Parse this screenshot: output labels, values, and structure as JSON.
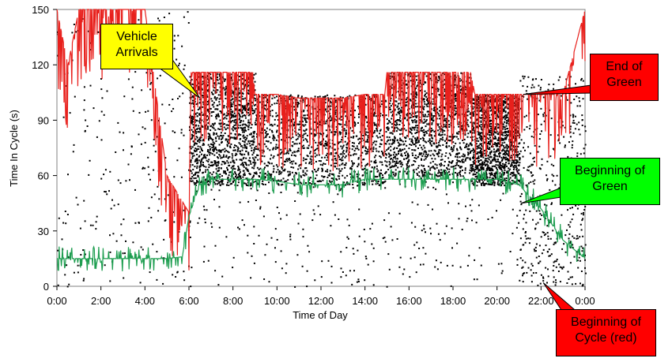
{
  "chart_data": {
    "type": "scatter",
    "title": "",
    "xlabel": "Time of Day",
    "ylabel": "Time In Cycle (s)",
    "xlim": [
      0,
      24
    ],
    "ylim": [
      0,
      150
    ],
    "x_ticks": [
      "0:00",
      "2:00",
      "4:00",
      "6:00",
      "8:00",
      "10:00",
      "12:00",
      "14:00",
      "16:00",
      "18:00",
      "20:00",
      "22:00",
      "0:00"
    ],
    "y_ticks": [
      0,
      30,
      60,
      90,
      120,
      150
    ],
    "grid": false,
    "series": [
      {
        "name": "Vehicle Arrivals",
        "color": "#000000",
        "kind": "points",
        "density_bands": [
          {
            "x": [
              0,
              6
            ],
            "y_low": 0,
            "y_high": 150,
            "density": "sparse"
          },
          {
            "x": [
              6,
              9
            ],
            "y_low": 55,
            "y_high": 116,
            "density": "dense"
          },
          {
            "x": [
              9,
              15
            ],
            "y_low": 55,
            "y_high": 104,
            "density": "dense"
          },
          {
            "x": [
              15,
              18.8
            ],
            "y_low": 60,
            "y_high": 116,
            "density": "dense"
          },
          {
            "x": [
              18.8,
              21
            ],
            "y_low": 55,
            "y_high": 104,
            "density": "dense"
          },
          {
            "x": [
              21,
              24
            ],
            "y_low": 0,
            "y_high": 115,
            "density": "medium"
          },
          {
            "x": [
              6,
              21
            ],
            "y_low": 0,
            "y_high": 60,
            "density": "sparse"
          }
        ]
      },
      {
        "name": "End of Green",
        "color": "#e8201c",
        "kind": "line",
        "x": [
          0,
          0.5,
          1,
          2,
          3,
          4,
          5,
          5.5,
          6,
          6.1,
          7,
          8,
          8.9,
          9,
          10,
          11,
          12,
          13,
          14,
          14.9,
          15,
          16,
          17,
          18,
          18.8,
          19,
          20,
          21,
          22,
          23,
          24
        ],
        "y": [
          150,
          120,
          150,
          150,
          150,
          150,
          60,
          50,
          40,
          116,
          116,
          116,
          116,
          104,
          104,
          102,
          102,
          102,
          104,
          104,
          116,
          116,
          116,
          116,
          116,
          104,
          104,
          104,
          104,
          104,
          150
        ]
      },
      {
        "name": "Beginning of Green",
        "color": "#1e9e50",
        "kind": "line",
        "x": [
          0,
          1,
          2,
          3,
          4,
          5,
          5.7,
          6,
          6.5,
          7,
          8,
          9,
          10,
          11,
          12,
          13,
          14,
          15,
          16,
          17,
          18,
          19,
          20,
          21,
          22,
          23,
          24
        ],
        "y": [
          15,
          15,
          15,
          15,
          15,
          15,
          16,
          38,
          55,
          58,
          58,
          58,
          57,
          55,
          55,
          55,
          58,
          58,
          58,
          58,
          58,
          58,
          58,
          55,
          42,
          25,
          15
        ]
      }
    ],
    "annotations": [
      {
        "text": [
          "Vehicle",
          "Arrivals"
        ],
        "fill": "#ffff00",
        "target_x": 6.5,
        "target_y": 102
      },
      {
        "text": [
          "End of",
          "Green"
        ],
        "fill": "#ff0000",
        "target_x": 21.2,
        "target_y": 104
      },
      {
        "text": [
          "Beginning of",
          "Green"
        ],
        "fill": "#00ff00",
        "target_x": 21.1,
        "target_y": 45
      },
      {
        "text": [
          "Beginning of",
          "Cycle (red)"
        ],
        "fill": "#ff0000",
        "target_x": 22.1,
        "target_y": 2
      }
    ]
  }
}
